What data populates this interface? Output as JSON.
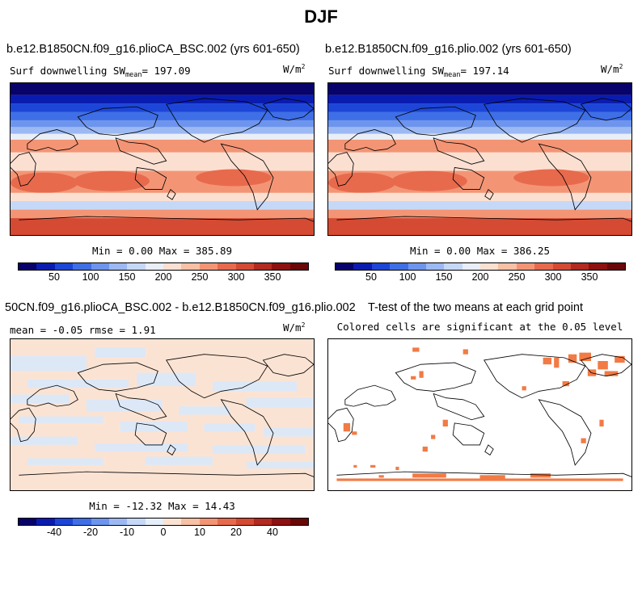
{
  "title": "DJF",
  "panels": {
    "top_left": {
      "case": "b.e12.B1850CN.f09_g16.plioCA_BSC.002 (yrs 601-650)",
      "var_label": "Surf downwelling SW",
      "mean_label": "mean",
      "mean_value": "= 197.09",
      "units_base": "W/m",
      "units_exp": "2",
      "minmax": "Min =    0.00 Max = 385.89"
    },
    "top_right": {
      "case": "b.e12.B1850CN.f09_g16.plio.002 (yrs 601-650)",
      "var_label": "Surf downwelling SW",
      "mean_label": "mean",
      "mean_value": "=  197.14",
      "units_base": "W/m",
      "units_exp": "2",
      "minmax": "Min =    0.00 Max = 386.25"
    },
    "bottom_left": {
      "case": "50CN.f09_g16.plioCA_BSC.002 - b.e12.B1850CN.f09_g16.plio.002",
      "stats": "mean =  -0.05    rmse =   1.91",
      "units_base": "W/m",
      "units_exp": "2",
      "minmax": "Min = -12.32 Max =  14.43"
    },
    "bottom_right": {
      "title": "T-test of the two means at each grid point",
      "subtitle": "Colored cells are significant at the 0.05 level"
    }
  },
  "colorbars": {
    "absolute": {
      "colors": [
        "#08026b",
        "#0a1cb0",
        "#1d46d8",
        "#3f6fe6",
        "#6d95ee",
        "#9cb9f3",
        "#c6d8f7",
        "#e9eef7",
        "#fbe0d2",
        "#f8c0a5",
        "#f39575",
        "#e86a4d",
        "#d44a33",
        "#b22a20",
        "#8e1010",
        "#6a0707"
      ],
      "ticks": [
        "50",
        "100",
        "150",
        "200",
        "250",
        "300",
        "350"
      ]
    },
    "difference": {
      "colors": [
        "#08026b",
        "#0a1cb0",
        "#1d46d8",
        "#3f6fe6",
        "#6d95ee",
        "#9cb9f3",
        "#c6d8f7",
        "#e6eefa",
        "#fbe3d3",
        "#f8c0a5",
        "#f39575",
        "#e86a4d",
        "#d44a33",
        "#b22a20",
        "#8e1010",
        "#6a0707"
      ],
      "ticks": [
        "-40",
        "-20",
        "-10",
        "0",
        "10",
        "20",
        "40"
      ]
    }
  },
  "colors": {
    "significant": "#f27a45",
    "diff_positive": "#fbe3d3",
    "diff_negative": "#dde8f7"
  }
}
